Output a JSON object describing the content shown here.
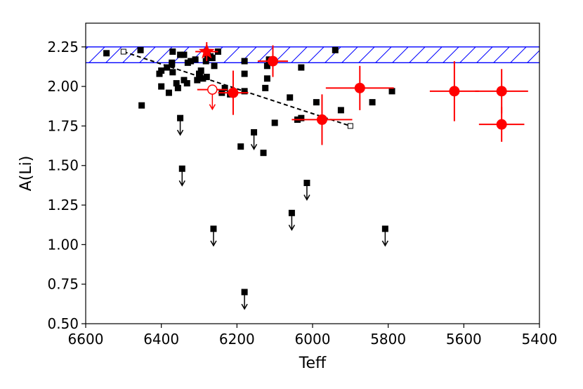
{
  "chart_data": {
    "type": "scatter",
    "title": "",
    "xlabel": "Teff",
    "ylabel": "A(Li)",
    "xlim": [
      6600,
      5400
    ],
    "ylim": [
      0.5,
      2.4
    ],
    "x_inverted": true,
    "grid": false,
    "legend": "none",
    "xticks": [
      6600,
      6400,
      6200,
      6000,
      5800,
      5600,
      5400
    ],
    "xtick_labels": [
      "6600",
      "6400",
      "6200",
      "6000",
      "5800",
      "5600",
      "5400"
    ],
    "yticks": [
      0.5,
      0.75,
      1.0,
      1.25,
      1.5,
      1.75,
      2.0,
      2.25
    ],
    "ytick_labels": [
      "0.50",
      "0.75",
      "1.00",
      "1.25",
      "1.50",
      "1.75",
      "2.00",
      "2.25"
    ],
    "band": {
      "ymin": 2.15,
      "ymax": 2.25,
      "color": "#0000ff",
      "hatch": "diagonal"
    },
    "trend_line": {
      "x": [
        6500,
        5900
      ],
      "y": [
        2.22,
        1.75
      ],
      "style": "dashed",
      "color": "#000000"
    },
    "colors": {
      "black": "#000000",
      "red": "#ff0000",
      "band": "#0000ff"
    },
    "series": [
      {
        "marker": "square",
        "color": "#000000",
        "points": [
          [
            6545,
            2.21
          ],
          [
            6455,
            2.23
          ],
          [
            6452,
            1.88
          ],
          [
            6405,
            2.08
          ],
          [
            6400,
            2.1
          ],
          [
            6400,
            2.0
          ],
          [
            6385,
            2.12
          ],
          [
            6380,
            1.96
          ],
          [
            6372,
            2.15
          ],
          [
            6370,
            2.22
          ],
          [
            6372,
            2.14
          ],
          [
            6370,
            2.09
          ],
          [
            6360,
            2.02
          ],
          [
            6356,
            1.99
          ],
          [
            6350,
            2.2
          ],
          [
            6340,
            2.2
          ],
          [
            6340,
            2.04
          ],
          [
            6332,
            2.02
          ],
          [
            6330,
            2.15
          ],
          [
            6322,
            2.16
          ],
          [
            6310,
            2.17
          ],
          [
            6305,
            2.04
          ],
          [
            6300,
            2.08
          ],
          [
            6298,
            2.06
          ],
          [
            6295,
            2.1
          ],
          [
            6290,
            2.05
          ],
          [
            6282,
            2.16
          ],
          [
            6280,
            2.06
          ],
          [
            6278,
            2.2
          ],
          [
            6270,
            2.19
          ],
          [
            6265,
            2.18
          ],
          [
            6260,
            2.13
          ],
          [
            6250,
            2.22
          ],
          [
            6240,
            1.96
          ],
          [
            6232,
            1.99
          ],
          [
            6218,
            1.95
          ],
          [
            6190,
            1.62
          ],
          [
            6180,
            2.16
          ],
          [
            6180,
            2.08
          ],
          [
            6180,
            1.97
          ],
          [
            6125,
            1.99
          ],
          [
            6120,
            2.05
          ],
          [
            6120,
            2.13
          ],
          [
            6115,
            2.17
          ],
          [
            6100,
            1.77
          ],
          [
            6060,
            1.93
          ],
          [
            6040,
            1.79
          ],
          [
            6030,
            1.8
          ],
          [
            6030,
            2.12
          ],
          [
            5990,
            1.9
          ],
          [
            5940,
            2.23
          ],
          [
            5925,
            1.85
          ],
          [
            5842,
            1.9
          ],
          [
            5790,
            1.97
          ],
          [
            6130,
            1.58
          ]
        ]
      },
      {
        "marker": "square",
        "color": "#000000",
        "upper_limit": true,
        "points": [
          [
            6350,
            1.8
          ],
          [
            6345,
            1.48
          ],
          [
            6262,
            1.1
          ],
          [
            6180,
            0.7
          ],
          [
            6155,
            1.71
          ],
          [
            6055,
            1.2
          ],
          [
            6015,
            1.39
          ],
          [
            5808,
            1.1
          ]
        ]
      },
      {
        "marker": "star",
        "color": "#ff0000",
        "points": [
          {
            "x": 6280,
            "y": 2.22,
            "xerr": 30,
            "yerr": 0.06
          }
        ]
      },
      {
        "marker": "open-circle",
        "color": "#ff0000",
        "upper_limit": true,
        "points": [
          {
            "x": 6265,
            "y": 1.98,
            "xerr": 40
          }
        ]
      },
      {
        "marker": "circle",
        "color": "#ff0000",
        "points": [
          {
            "x": 6210,
            "y": 1.96,
            "xerr": 40,
            "yerr": 0.14
          },
          {
            "x": 6105,
            "y": 2.16,
            "xerr": 40,
            "yerr": 0.1
          },
          {
            "x": 5975,
            "y": 1.79,
            "xerr": 80,
            "yerr": 0.16
          },
          {
            "x": 5875,
            "y": 1.99,
            "xerr": 90,
            "yerr": 0.14
          },
          {
            "x": 5625,
            "y": 1.97,
            "xerr": 65,
            "yerr": 0.19
          },
          {
            "x": 5500,
            "y": 1.97,
            "xerr": 70,
            "yerr": 0.14
          },
          {
            "x": 5500,
            "y": 1.76,
            "xerr": 60,
            "yerr": 0.11
          }
        ]
      }
    ]
  }
}
